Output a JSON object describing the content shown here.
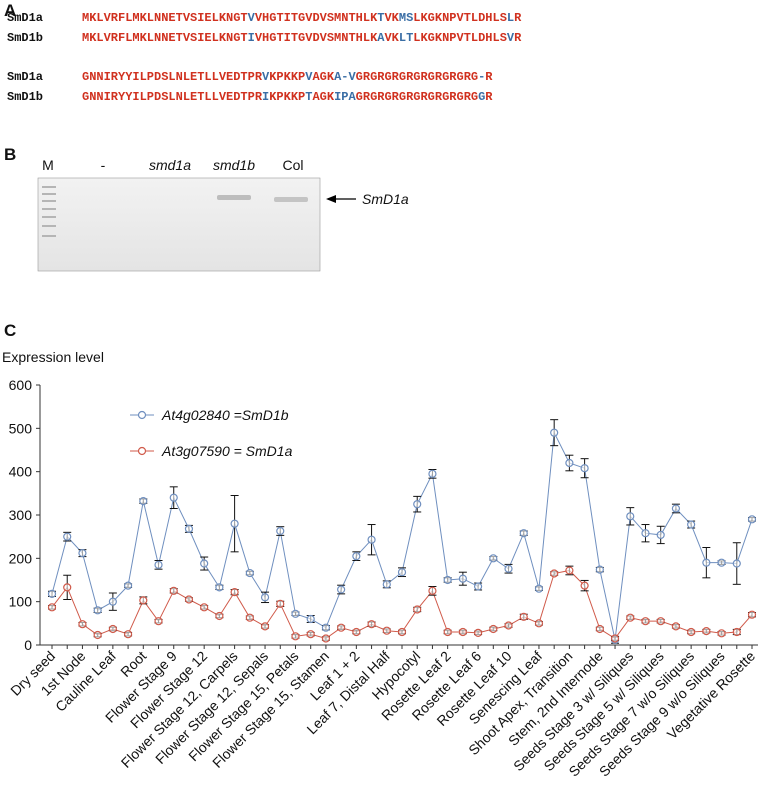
{
  "panel_a": {
    "label": "A",
    "rows": [
      {
        "name": "SmD1a",
        "segments": [
          {
            "text": "MKLVRFLMKLNNETVSIELKNGT",
            "color": "#d0311f"
          },
          {
            "text": "V",
            "color": "#3a6ea5"
          },
          {
            "text": "VHGTITGVDVSMNTHLK",
            "color": "#d0311f"
          },
          {
            "text": "T",
            "color": "#3a6ea5"
          },
          {
            "text": "VK",
            "color": "#d0311f"
          },
          {
            "text": "MS",
            "color": "#3a6ea5"
          },
          {
            "text": "LKGKNPVTLDHLS",
            "color": "#d0311f"
          },
          {
            "text": "L",
            "color": "#3a6ea5"
          },
          {
            "text": "R",
            "color": "#d0311f"
          }
        ]
      },
      {
        "name": "SmD1b",
        "segments": [
          {
            "text": "MKLVRFLMKLNNETVSIELKNGT",
            "color": "#d0311f"
          },
          {
            "text": "I",
            "color": "#3a6ea5"
          },
          {
            "text": "VHGTITGVDVSMNTHLK",
            "color": "#d0311f"
          },
          {
            "text": "A",
            "color": "#3a6ea5"
          },
          {
            "text": "VK",
            "color": "#d0311f"
          },
          {
            "text": "LT",
            "color": "#3a6ea5"
          },
          {
            "text": "LKGKNPVTLDHLS",
            "color": "#d0311f"
          },
          {
            "text": "V",
            "color": "#3a6ea5"
          },
          {
            "text": "R",
            "color": "#d0311f"
          }
        ]
      },
      {
        "name": "SmD1a",
        "segments": [
          {
            "text": "GNNIRYYILPDSLNLETLLVEDTPR",
            "color": "#d0311f"
          },
          {
            "text": "V",
            "color": "#3a6ea5"
          },
          {
            "text": "KPKKP",
            "color": "#d0311f"
          },
          {
            "text": "V",
            "color": "#3a6ea5"
          },
          {
            "text": "AGK",
            "color": "#d0311f"
          },
          {
            "text": "A-V",
            "color": "#3a6ea5"
          },
          {
            "text": "GRGRGRGRGRGRGRGRG",
            "color": "#d0311f"
          },
          {
            "text": "-",
            "color": "#3a6ea5"
          },
          {
            "text": "R",
            "color": "#d0311f"
          }
        ]
      },
      {
        "name": "SmD1b",
        "segments": [
          {
            "text": "GNNIRYYILPDSLNLETLLVEDTPR",
            "color": "#d0311f"
          },
          {
            "text": "I",
            "color": "#3a6ea5"
          },
          {
            "text": "KPKKP",
            "color": "#d0311f"
          },
          {
            "text": "T",
            "color": "#3a6ea5"
          },
          {
            "text": "AGK",
            "color": "#d0311f"
          },
          {
            "text": "IPA",
            "color": "#3a6ea5"
          },
          {
            "text": "GRGRGRGRGRGRGRGRG",
            "color": "#d0311f"
          },
          {
            "text": "G",
            "color": "#3a6ea5"
          },
          {
            "text": "R",
            "color": "#d0311f"
          }
        ]
      }
    ]
  },
  "panel_b": {
    "label": "B",
    "lanes": [
      "M",
      "-",
      "smd1a",
      "smd1b",
      "Col"
    ],
    "band_label": "SmD1a"
  },
  "chart_data": {
    "type": "line",
    "panel_label": "C",
    "y_label": "Expression level",
    "categories": [
      "Dry seed",
      null,
      "1st Node",
      null,
      "Cauline Leaf",
      null,
      "Root",
      null,
      "Flower Stage 9",
      null,
      "Flower Stage 12",
      null,
      "Flower Stage 12, Carpels",
      null,
      "Flower Stage 12, Sepals",
      null,
      "Flower Stage 15, Petals",
      null,
      "Flower Stage 15, Stamen",
      null,
      "Leaf 1 + 2",
      null,
      "Leaf 7, Distal Half",
      null,
      "Hypocotyl",
      null,
      "Rosette Leaf 2",
      null,
      "Rosette Leaf 6",
      null,
      "Rosette Leaf 10",
      null,
      "Senescing Leaf",
      null,
      "Shoot Apex, Transition",
      null,
      "Stem, 2nd Internode",
      null,
      "Seeds Stage 3 w/ Siliques",
      null,
      "Seeds Stage 5 w/ Siliques",
      null,
      "Seeds Stage 7 w/o Siliques",
      null,
      "Seeds Stage 9 w/o Siliques",
      null,
      "Vegetative Rosette"
    ],
    "series": [
      {
        "name": "At4g02840 =SmD1b",
        "color": "#6f8fbf",
        "values": [
          118,
          250,
          212,
          80,
          100,
          137,
          332,
          185,
          340,
          268,
          188,
          133,
          280,
          166,
          110,
          263,
          72,
          60,
          40,
          128,
          205,
          243,
          140,
          168,
          325,
          395,
          150,
          153,
          135,
          200,
          176,
          258,
          130,
          490,
          420,
          408,
          174,
          12,
          297,
          258,
          254,
          315,
          278,
          190,
          190,
          188,
          290
        ],
        "errors": [
          6,
          10,
          8,
          5,
          20,
          4,
          5,
          10,
          25,
          8,
          15,
          5,
          65,
          4,
          12,
          10,
          4,
          8,
          5,
          10,
          10,
          35,
          8,
          10,
          18,
          10,
          5,
          15,
          8,
          4,
          10,
          5,
          4,
          30,
          18,
          22,
          5,
          8,
          20,
          20,
          20,
          10,
          8,
          35,
          4,
          48,
          4
        ]
      },
      {
        "name": "At3g07590 = SmD1a",
        "color": "#d05a4a",
        "values": [
          87,
          133,
          48,
          23,
          37,
          25,
          103,
          55,
          125,
          105,
          87,
          67,
          122,
          63,
          43,
          95,
          20,
          25,
          15,
          40,
          30,
          48,
          33,
          30,
          82,
          125,
          30,
          30,
          28,
          37,
          45,
          65,
          50,
          165,
          172,
          137,
          37,
          15,
          63,
          55,
          55,
          43,
          30,
          32,
          27,
          30,
          70
        ],
        "errors": [
          4,
          28,
          4,
          4,
          4,
          4,
          8,
          4,
          5,
          4,
          4,
          4,
          6,
          4,
          4,
          6,
          4,
          4,
          4,
          4,
          4,
          5,
          4,
          4,
          5,
          10,
          4,
          4,
          4,
          4,
          4,
          6,
          4,
          4,
          10,
          12,
          4,
          4,
          4,
          4,
          4,
          4,
          4,
          4,
          4,
          6,
          5
        ]
      }
    ],
    "ylim": [
      0,
      600
    ],
    "yticks": [
      0,
      100,
      200,
      300,
      400,
      500,
      600
    ],
    "grid": false,
    "legend": "upper left"
  }
}
